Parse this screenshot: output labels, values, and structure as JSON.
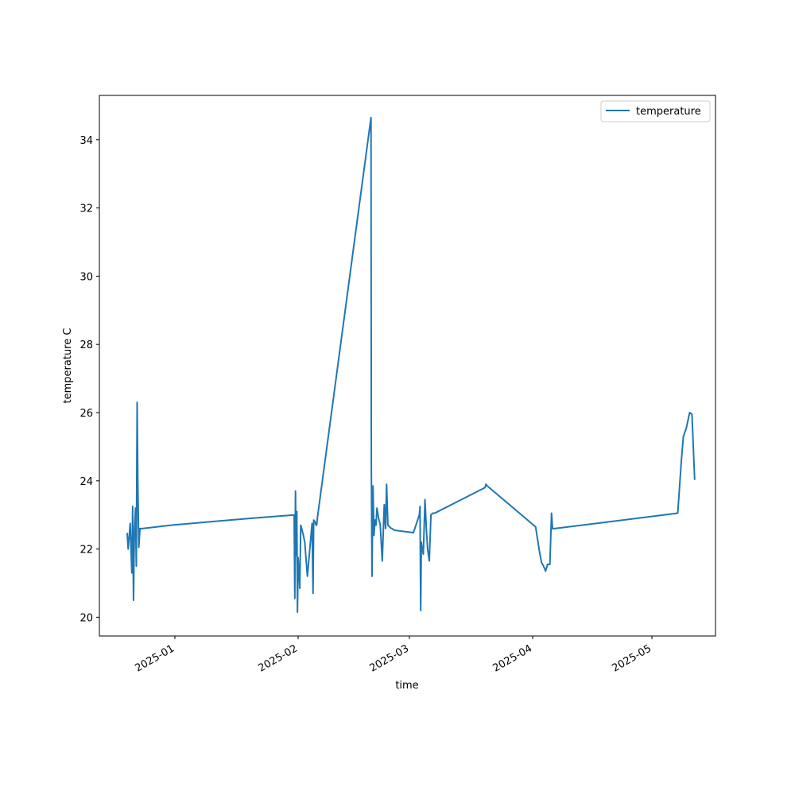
{
  "chart_data": {
    "type": "line",
    "xlabel": "time",
    "ylabel": "temperature C",
    "xlim": [
      "2024-12-13",
      "2025-05-17"
    ],
    "ylim": [
      19.45,
      35.3
    ],
    "x_ticks": [
      {
        "date": "2025-01-01",
        "label": "2025-01"
      },
      {
        "date": "2025-02-01",
        "label": "2025-02"
      },
      {
        "date": "2025-03-01",
        "label": "2025-03"
      },
      {
        "date": "2025-04-01",
        "label": "2025-04"
      },
      {
        "date": "2025-05-01",
        "label": "2025-05"
      }
    ],
    "y_ticks": [
      20,
      22,
      24,
      26,
      28,
      30,
      32,
      34
    ],
    "grid": false,
    "legend": {
      "position": "top-right",
      "entries": [
        "temperature"
      ]
    },
    "colors": {
      "series": "#1f77b4"
    },
    "series": [
      {
        "name": "temperature",
        "x": [
          "2024-12-20T00:00",
          "2024-12-20T06:00",
          "2024-12-20T18:00",
          "2024-12-21T04:00",
          "2024-12-21T09:00",
          "2024-12-21T14:00",
          "2024-12-21T19:00",
          "2024-12-22T02:00",
          "2024-12-22T07:00",
          "2024-12-22T12:00",
          "2024-12-22T16:00",
          "2024-12-22T22:00",
          "2024-12-23T05:00",
          "2024-12-23T12:00",
          "2024-12-23T18:00",
          "2024-12-31T00:00",
          "2025-01-10T00:00",
          "2025-01-20T00:00",
          "2025-01-31T00:00",
          "2025-01-31T04:00",
          "2025-01-31T08:00",
          "2025-01-31T12:00",
          "2025-01-31T16:00",
          "2025-01-31T20:00",
          "2025-02-01T00:00",
          "2025-02-01T06:00",
          "2025-02-01T10:00",
          "2025-02-01T16:00",
          "2025-02-02T00:00",
          "2025-02-02T08:00",
          "2025-02-02T16:00",
          "2025-02-03T08:00",
          "2025-02-04T12:00",
          "2025-02-04T18:00",
          "2025-02-04T22:00",
          "2025-02-05T06:00",
          "2025-02-05T12:00",
          "2025-02-05T16:00",
          "2025-02-05T20:00",
          "2025-02-19T08:00",
          "2025-02-19T10:00",
          "2025-02-19T14:00",
          "2025-02-19T20:00",
          "2025-02-20T02:00",
          "2025-02-20T08:00",
          "2025-02-20T14:00",
          "2025-02-20T20:00",
          "2025-02-21T06:00",
          "2025-02-21T16:00",
          "2025-02-22T04:00",
          "2025-02-22T16:00",
          "2025-02-23T00:00",
          "2025-02-23T06:00",
          "2025-02-23T14:00",
          "2025-02-24T00:00",
          "2025-02-24T06:00",
          "2025-02-24T14:00",
          "2025-02-24T20:00",
          "2025-02-25T06:00",
          "2025-03-02T00:00",
          "2025-03-03T12:00",
          "2025-03-03T16:00",
          "2025-03-03T20:00",
          "2025-03-04T00:00",
          "2025-03-04T04:00",
          "2025-03-04T12:00",
          "2025-03-04T22:00",
          "2025-03-05T06:00",
          "2025-03-05T14:00",
          "2025-03-06T00:00",
          "2025-03-06T10:00",
          "2025-03-06T20:00",
          "2025-03-07T04:00",
          "2025-03-07T08:00",
          "2025-03-20T00:00",
          "2025-03-20T06:00",
          "2025-03-20T14:00",
          "2025-04-01T18:00",
          "2025-04-02T18:00",
          "2025-04-03T06:00",
          "2025-04-03T18:00",
          "2025-04-04T06:00",
          "2025-04-04T18:00",
          "2025-04-05T02:00",
          "2025-04-05T08:00",
          "2025-04-05T18:00",
          "2025-04-06T00:00",
          "2025-04-06T06:00",
          "2025-04-06T12:00",
          "2025-05-07T12:00",
          "2025-05-08T10:00",
          "2025-05-08T22:00",
          "2025-05-09T16:00",
          "2025-05-10T12:00",
          "2025-05-11T02:00",
          "2025-05-11T18:00"
        ],
        "values": [
          22.45,
          22.0,
          22.75,
          21.3,
          23.25,
          20.5,
          22.4,
          23.2,
          21.5,
          26.3,
          24.0,
          22.05,
          22.6,
          22.6,
          22.6,
          22.7,
          22.8,
          22.9,
          23.0,
          20.55,
          23.7,
          21.8,
          23.1,
          20.15,
          21.75,
          21.3,
          20.85,
          22.7,
          22.55,
          22.4,
          22.2,
          21.2,
          22.75,
          20.7,
          22.85,
          22.8,
          22.7,
          22.7,
          22.9,
          34.65,
          24.5,
          21.2,
          23.85,
          22.4,
          22.85,
          22.7,
          23.2,
          22.9,
          22.7,
          21.65,
          23.3,
          22.6,
          23.9,
          22.7,
          22.65,
          22.62,
          22.6,
          22.58,
          22.55,
          22.48,
          23.0,
          23.25,
          20.2,
          22.2,
          22.05,
          21.85,
          23.45,
          22.6,
          22.0,
          21.65,
          23.0,
          23.05,
          23.05,
          23.05,
          23.8,
          23.9,
          23.85,
          22.65,
          21.9,
          21.6,
          21.5,
          21.35,
          21.55,
          21.55,
          21.55,
          23.05,
          22.6,
          22.6,
          22.6,
          23.05,
          24.6,
          25.3,
          25.55,
          26.0,
          25.95,
          24.05
        ]
      }
    ]
  }
}
